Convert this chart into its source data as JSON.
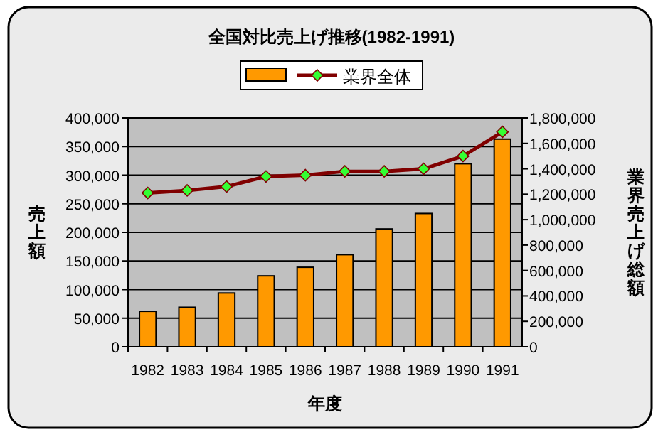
{
  "chart_data": {
    "type": "bar",
    "title": "全国対比売上げ推移(1982-1991)",
    "xlabel": "年度",
    "ylabel": "売上額",
    "y2label": "業界売上げ総額",
    "categories": [
      "1982",
      "1983",
      "1984",
      "1985",
      "1986",
      "1987",
      "1988",
      "1989",
      "1990",
      "1991"
    ],
    "series": [
      {
        "color": "#ff9900",
        "values": [
          62000,
          69000,
          94000,
          124000,
          139000,
          161000,
          206000,
          233000,
          320000,
          363000
        ]
      },
      {
        "name": "業界全体",
        "type": "line",
        "axis": "y2",
        "color": "#800000",
        "marker": "diamond",
        "values": [
          1210000,
          1230000,
          1260000,
          1340000,
          1350000,
          1380000,
          1380000,
          1400000,
          1500000,
          1690000
        ]
      }
    ],
    "ylim": [
      0,
      400000
    ],
    "yticks": [
      0,
      {
        "value": 50000,
        "label": "50,000"
      },
      {
        "value": 100000,
        "label": "100,000"
      },
      {
        "value": 150000,
        "label": "150,000"
      },
      {
        "value": 200000,
        "label": "200,000"
      },
      {
        "value": 250000,
        "label": "250,000"
      },
      {
        "value": 300000,
        "label": "300,000"
      },
      {
        "value": 350000,
        "label": "350,000"
      },
      {
        "value": 400000,
        "label": "400,000"
      }
    ],
    "y2lim": [
      0,
      1800000
    ],
    "y2ticks": [
      0,
      {
        "value": 200000,
        "label": "200,000"
      },
      {
        "value": 400000,
        "label": "400,000"
      },
      {
        "value": 600000,
        "label": "600,000"
      },
      {
        "value": 800000,
        "label": "800,000"
      },
      {
        "value": 1000000,
        "label": "1,000,000"
      },
      {
        "value": 1200000,
        "label": "1,200,000"
      },
      {
        "value": 1400000,
        "label": "1,400,000"
      },
      {
        "value": 1600000,
        "label": "1,600,000"
      },
      {
        "value": 1800000,
        "label": "1,800,000"
      }
    ],
    "grid": "y",
    "legend": "top"
  }
}
